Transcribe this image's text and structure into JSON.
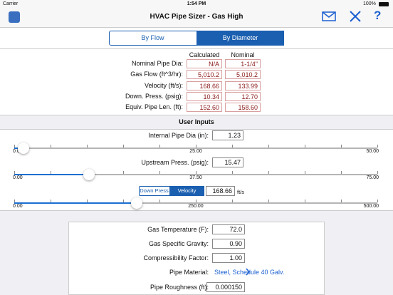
{
  "status_bar": {
    "carrier": "Carrier",
    "time": "1:54 PM",
    "battery": "100%"
  },
  "nav": {
    "title": "HVAC Pipe Sizer - Gas High",
    "help": "?"
  },
  "mode_tabs": [
    "By Flow",
    "By Diameter"
  ],
  "results": {
    "columns": [
      "Calculated",
      "Nominal"
    ],
    "rows": [
      [
        "Nominal Pipe Dia:",
        "N/A",
        "1-1/4\""
      ],
      [
        "Gas Flow (ft^3/hr):",
        "5,010.2",
        "5,010.2"
      ],
      [
        "Velocity (ft/s):",
        "168.66",
        "133.99"
      ],
      [
        "Down. Press. (psig):",
        "10.34",
        "12.70"
      ],
      [
        "Equiv. Pipe Len. (ft):",
        "152.60",
        "158.60"
      ]
    ]
  },
  "user_inputs": {
    "title": "User Inputs",
    "pipe_dia": {
      "label": "Internal Pipe Dia (in):",
      "value": "1.23",
      "ticks": [
        {
          "value": 0,
          "label": "0.00"
        },
        {
          "value": 25,
          "label": "25.00"
        },
        {
          "value": 50,
          "label": "50.00"
        }
      ]
    },
    "upstream": {
      "label": "Upstream Press. (psig):",
      "value": "15.47",
      "ticks": [
        {
          "value": 0,
          "label": "0.00"
        },
        {
          "value": 37.5,
          "label": "37.50"
        },
        {
          "value": 75,
          "label": "75.00"
        }
      ]
    },
    "third": {
      "tabs": [
        "Down Press",
        "Velocity"
      ],
      "value": "168.66",
      "unit": "ft/s",
      "ticks": [
        {
          "value": 0,
          "label": "0.00"
        },
        {
          "value": 250,
          "label": "250.00"
        },
        {
          "value": 500,
          "label": "500.00"
        }
      ]
    }
  },
  "properties": {
    "rows": [
      [
        "Gas Temperature (F):",
        "72.0"
      ],
      [
        "Gas Specific Gravity:",
        "0.90"
      ],
      [
        "Compressibility Factor:",
        "1.00"
      ]
    ],
    "material_label": "Pipe Material:",
    "material": "Steel, Schedule 40 Galv.",
    "roughness_label": "Pipe Roughness (ft):",
    "roughness": "0.000150"
  }
}
